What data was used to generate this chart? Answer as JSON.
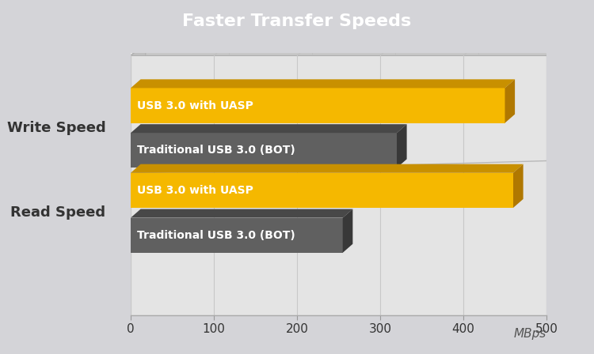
{
  "title": "Faster Transfer Speeds",
  "title_bg": "#a0a0a8",
  "title_color": "#ffffff",
  "fig_bg": "#d4d4d8",
  "plot_bg": "#e8e8e8",
  "box_bg": "#dcdcdc",
  "groups": [
    "Write Speed",
    "Read Speed"
  ],
  "series": [
    {
      "label": "USB 3.0 with UASP",
      "face": "#f5b800",
      "top": "#c89000",
      "side": "#b07800"
    },
    {
      "label": "Traditional USB 3.0 (BOT)",
      "face": "#606060",
      "top": "#484848",
      "side": "#383838"
    }
  ],
  "values": {
    "Write Speed": [
      450,
      320
    ],
    "Read Speed": [
      460,
      255
    ]
  },
  "xlim": [
    0,
    500
  ],
  "xticks": [
    0,
    100,
    200,
    300,
    400,
    500
  ],
  "xlabel": "MBps",
  "label_fontsize": 10,
  "group_label_fontsize": 13,
  "group_label_color": "#333333",
  "title_fontsize": 16,
  "tick_fontsize": 11,
  "xlabel_fontsize": 11
}
